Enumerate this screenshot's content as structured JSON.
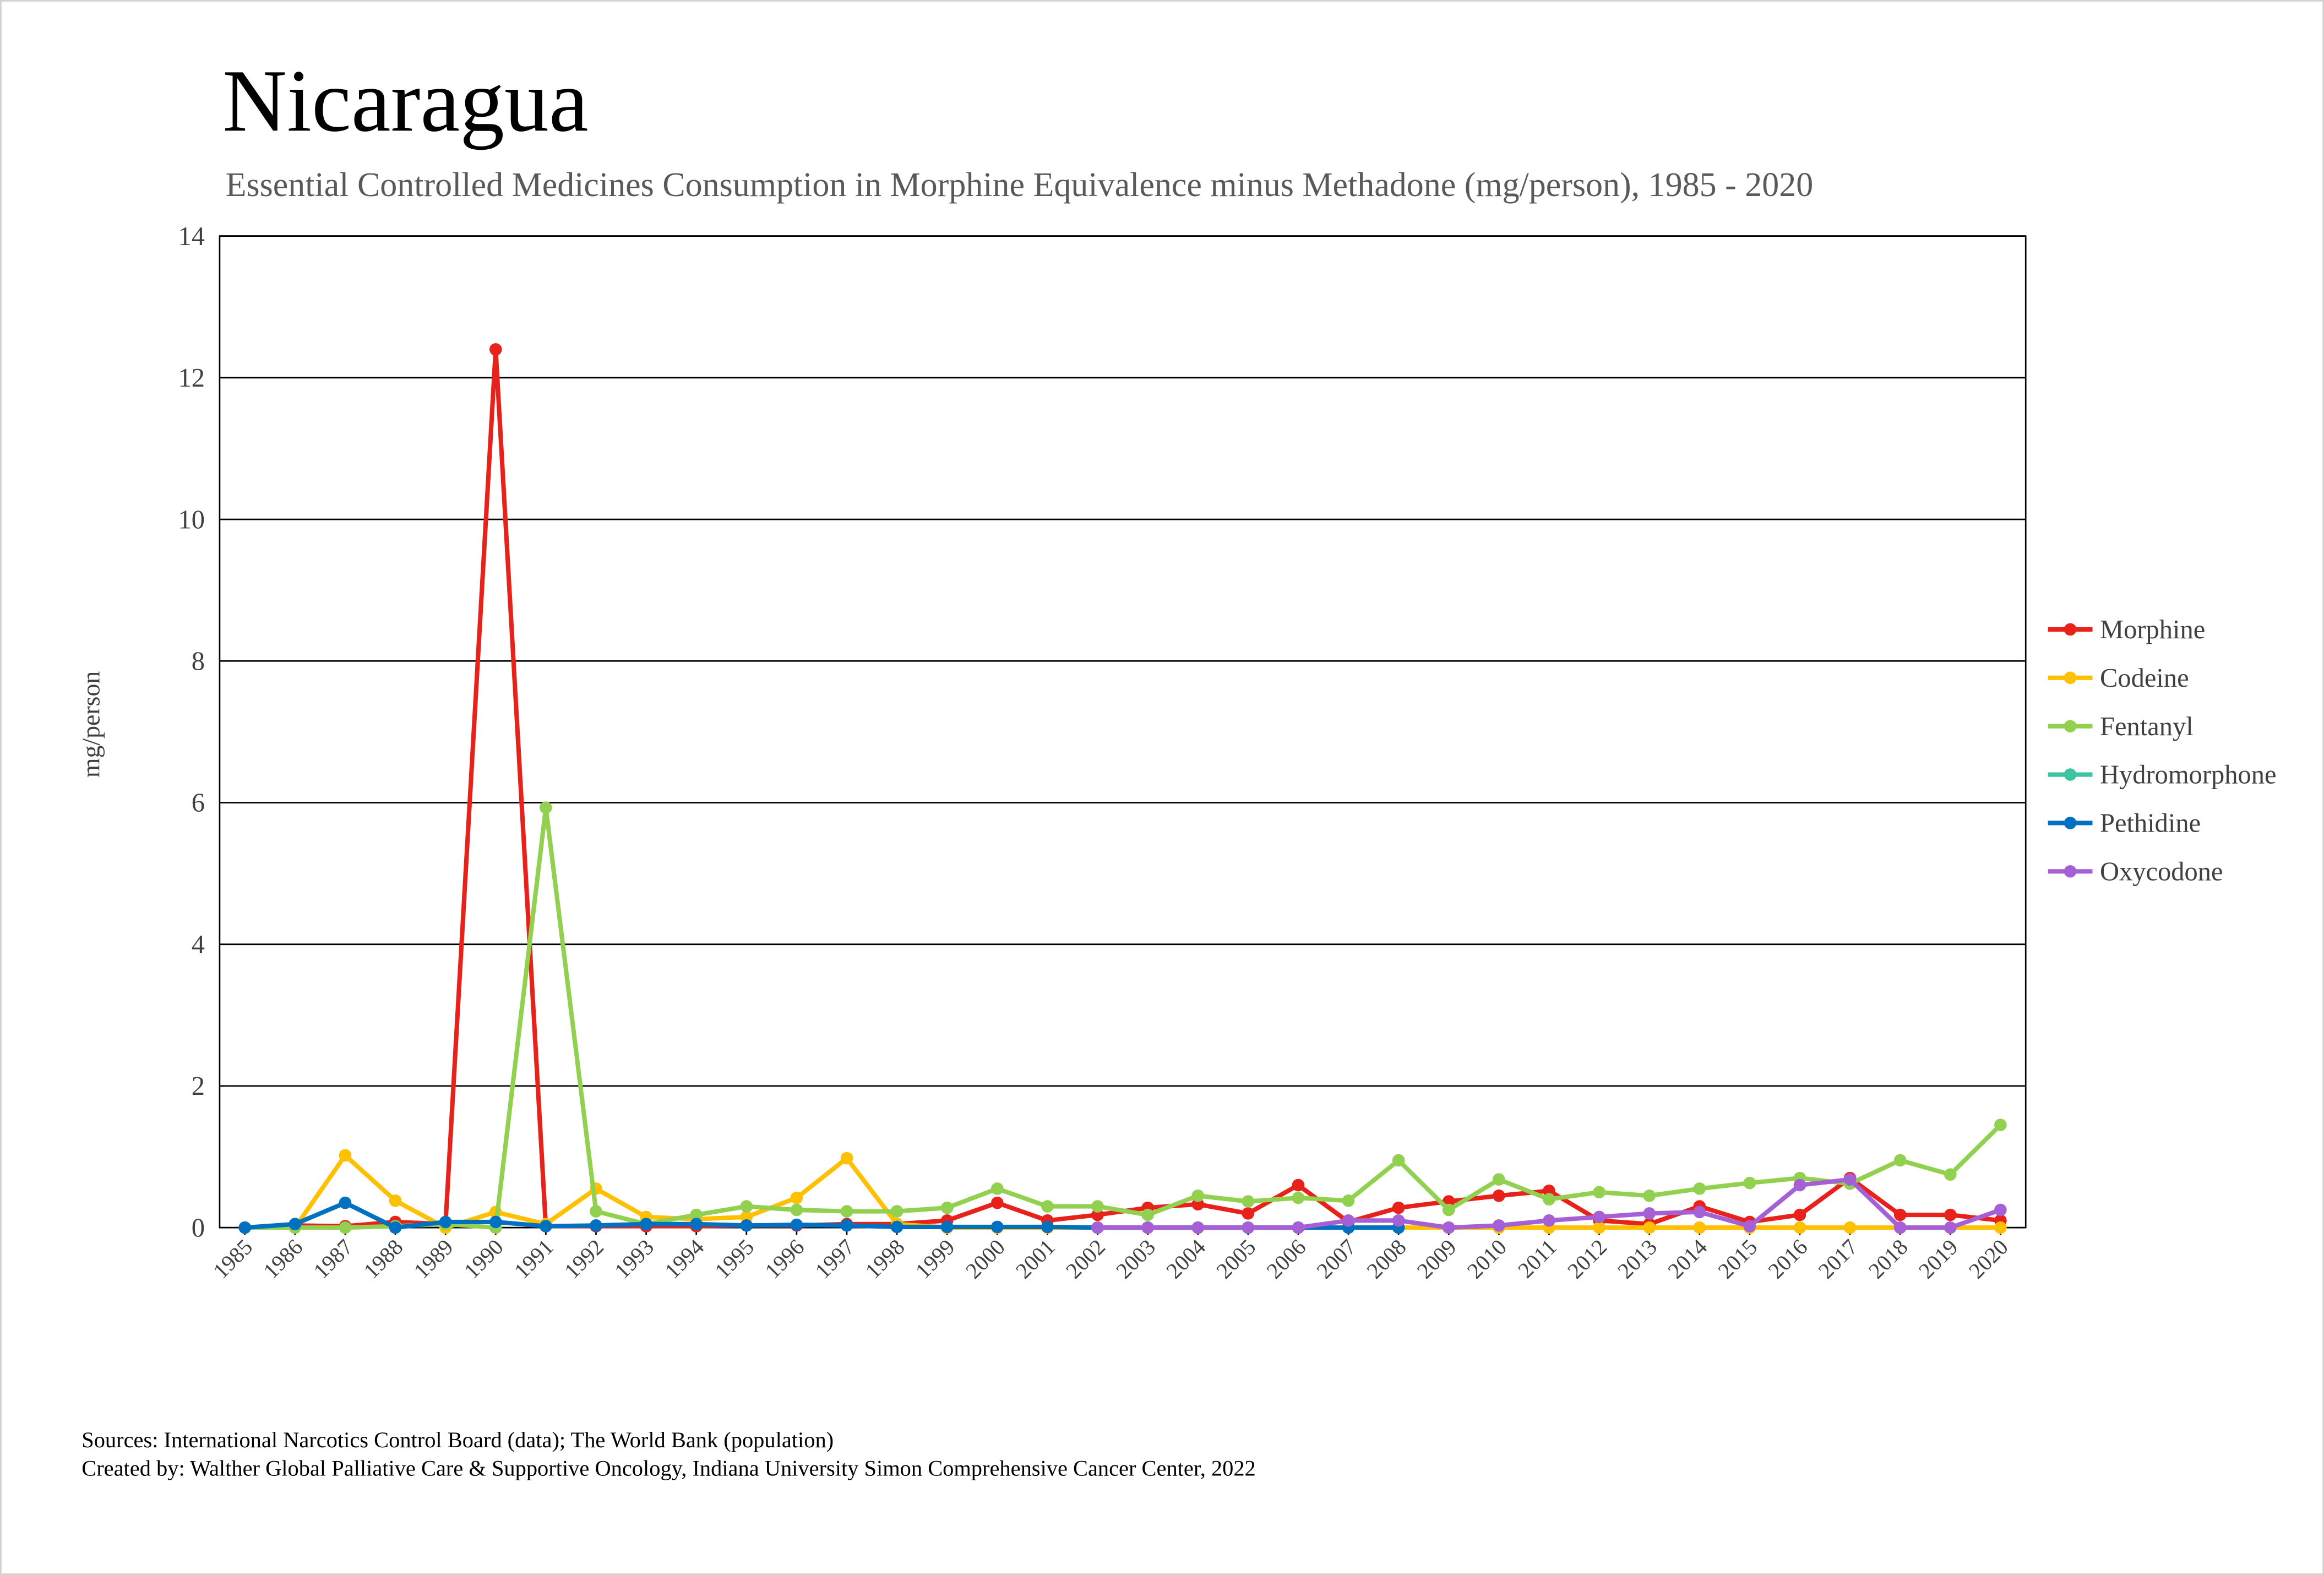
{
  "chart_data": {
    "type": "line",
    "title": "Nicaragua",
    "subtitle": "Essential Controlled Medicines Consumption in Morphine Equivalence minus Methadone (mg/person), 1985 - 2020",
    "y_label": "mg/person",
    "categories": [
      "1985",
      "1986",
      "1987",
      "1988",
      "1989",
      "1990",
      "1991",
      "1992",
      "1993",
      "1994",
      "1995",
      "1996",
      "1997",
      "1998",
      "1999",
      "2000",
      "2001",
      "2002",
      "2003",
      "2004",
      "2005",
      "2006",
      "2007",
      "2008",
      "2009",
      "2010",
      "2011",
      "2012",
      "2013",
      "2014",
      "2015",
      "2016",
      "2017",
      "2018",
      "2019",
      "2020"
    ],
    "series": [
      {
        "name": "Morphine",
        "color": "#e8211b",
        "values": [
          0,
          0.03,
          0.02,
          0.08,
          0.05,
          12.4,
          0.02,
          0.02,
          0.02,
          0.02,
          0.03,
          0.03,
          0.05,
          0.05,
          0.1,
          0.35,
          0.1,
          0.18,
          0.28,
          0.33,
          0.2,
          0.6,
          0.08,
          0.28,
          0.37,
          0.45,
          0.52,
          0.1,
          0.05,
          0.3,
          0.08,
          0.18,
          0.7,
          0.18,
          0.18,
          0.1
        ]
      },
      {
        "name": "Codeine",
        "color": "#ffc000",
        "values": [
          0,
          0,
          1.02,
          0.38,
          0,
          0.22,
          0.05,
          0.55,
          0.15,
          0.12,
          0.15,
          0.42,
          0.98,
          0.05,
          0,
          0,
          0,
          0,
          0,
          0,
          0,
          0,
          0,
          0,
          0,
          0,
          0,
          0,
          0,
          0,
          0,
          0,
          0,
          0,
          0,
          0
        ]
      },
      {
        "name": "Fentanyl",
        "color": "#92d050",
        "values": [
          0,
          0,
          0,
          0.02,
          0.05,
          0,
          5.93,
          0.23,
          0.05,
          0.18,
          0.3,
          0.25,
          0.23,
          0.23,
          0.28,
          0.55,
          0.3,
          0.3,
          0.18,
          0.45,
          0.37,
          0.42,
          0.38,
          0.95,
          0.25,
          0.68,
          0.4,
          0.5,
          0.45,
          0.55,
          0.63,
          0.7,
          0.62,
          0.95,
          0.75,
          1.45
        ]
      },
      {
        "name": "Hydromorphone",
        "color": "#3cc5a0",
        "values": [
          null,
          null,
          null,
          null,
          null,
          null,
          null,
          null,
          null,
          null,
          null,
          null,
          null,
          null,
          null,
          null,
          null,
          null,
          null,
          null,
          null,
          null,
          null,
          null,
          null,
          null,
          null,
          null,
          null,
          null,
          null,
          null,
          null,
          null,
          null,
          null
        ]
      },
      {
        "name": "Pethidine",
        "color": "#0070c0",
        "values": [
          0,
          0.05,
          0.35,
          0,
          0.08,
          0.08,
          0.02,
          0.03,
          0.05,
          0.05,
          0.03,
          0.04,
          0.03,
          0.01,
          0.01,
          0.01,
          0.01,
          0,
          0,
          0,
          0,
          0,
          0,
          0,
          null,
          null,
          null,
          null,
          null,
          null,
          null,
          null,
          null,
          null,
          null,
          null
        ]
      },
      {
        "name": "Oxycodone",
        "color": "#a660d6",
        "values": [
          null,
          null,
          null,
          null,
          null,
          null,
          null,
          null,
          null,
          null,
          null,
          null,
          null,
          null,
          null,
          null,
          null,
          0,
          0,
          0,
          0,
          0,
          0.1,
          0.1,
          0,
          0.03,
          0.1,
          0.15,
          0.2,
          0.22,
          0.02,
          0.6,
          0.68,
          0,
          0,
          0.25
        ]
      }
    ],
    "ylim": [
      0,
      14
    ],
    "yticks": [
      0,
      2,
      4,
      6,
      8,
      10,
      12,
      14
    ],
    "grid": true,
    "legend": "right",
    "footnotes": [
      "Sources: International Narcotics Control Board (data); The World Bank (population)",
      "Created by: Walther Global Palliative Care & Supportive Oncology, Indiana University Simon Comprehensive Cancer Center, 2022"
    ]
  }
}
